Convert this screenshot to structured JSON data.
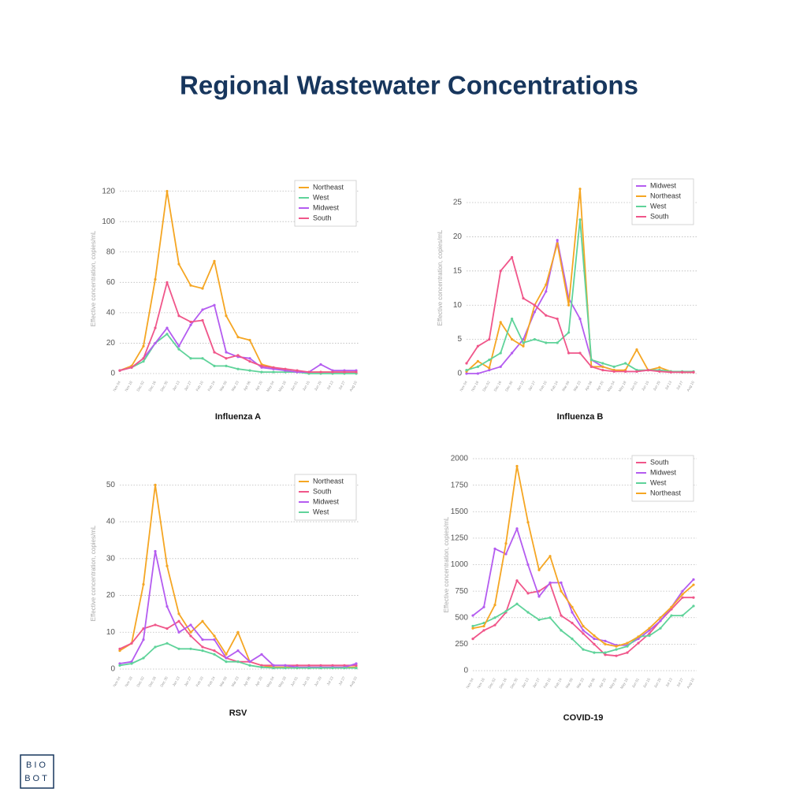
{
  "title": "Regional Wastewater Concentrations",
  "logo": {
    "line1": "BIO",
    "line2": "BOT"
  },
  "chart_data": [
    {
      "type": "line",
      "title": "Influenza A",
      "y_label": "Effective concentration, copies/mL",
      "categories": [
        "Nov 04",
        "Nov 18",
        "Dec 02",
        "Dec 16",
        "Dec 30",
        "Jan 13",
        "Jan 27",
        "Feb 10",
        "Feb 24",
        "Mar 09",
        "Mar 23",
        "Apr 06",
        "Apr 20",
        "May 04",
        "May 18",
        "Jun 01",
        "Jun 15",
        "Jun 29",
        "Jul 13",
        "Jul 27",
        "Aug 10"
      ],
      "ylim": [
        0,
        125
      ],
      "yticks": [
        0,
        20,
        40,
        60,
        80,
        100,
        120
      ],
      "grid": true,
      "legend": "upper right",
      "series": [
        {
          "name": "Northeast",
          "color": "#f5a623",
          "values": [
            2,
            5,
            18,
            62,
            120,
            72,
            58,
            56,
            74,
            38,
            24,
            22,
            6,
            4,
            2,
            1,
            1,
            1,
            1,
            1,
            1
          ]
        },
        {
          "name": "West",
          "color": "#5fd39a",
          "values": [
            2,
            4,
            8,
            20,
            26,
            16,
            10,
            10,
            5,
            5,
            3,
            2,
            1,
            1,
            1,
            1,
            0,
            0,
            0,
            0,
            0
          ]
        },
        {
          "name": "Midwest",
          "color": "#b45cf0",
          "values": [
            2,
            4,
            10,
            20,
            30,
            18,
            32,
            42,
            45,
            14,
            11,
            10,
            4,
            3,
            2,
            1,
            1,
            6,
            2,
            2,
            2
          ]
        },
        {
          "name": "South",
          "color": "#f0568a",
          "values": [
            2,
            4,
            10,
            30,
            60,
            38,
            34,
            35,
            14,
            10,
            12,
            8,
            5,
            4,
            3,
            2,
            1,
            1,
            1,
            1,
            1
          ]
        }
      ]
    },
    {
      "type": "line",
      "title": "Influenza B",
      "y_label": "Effective concentration, copies/mL",
      "categories": [
        "Nov 04",
        "Nov 18",
        "Dec 02",
        "Dec 16",
        "Dec 30",
        "Jan 13",
        "Jan 27",
        "Feb 10",
        "Feb 24",
        "Mar 09",
        "Mar 23",
        "Apr 06",
        "Apr 20",
        "May 04",
        "May 18",
        "Jun 01",
        "Jun 15",
        "Jun 29",
        "Jul 13",
        "Jul 27",
        "Aug 10"
      ],
      "ylim": [
        0,
        28
      ],
      "yticks": [
        0,
        5,
        10,
        15,
        20,
        25
      ],
      "grid": true,
      "legend": "upper right",
      "series": [
        {
          "name": "Midwest",
          "color": "#b45cf0",
          "values": [
            0,
            0,
            0.5,
            1,
            3,
            5,
            9,
            12,
            19.5,
            11,
            8,
            2,
            1,
            0.5,
            0.3,
            0.3,
            0.5,
            0.5,
            0.3,
            0.2,
            0.2
          ]
        },
        {
          "name": "Northeast",
          "color": "#f5a623",
          "values": [
            0.3,
            1.8,
            0.8,
            7.5,
            5,
            4,
            10,
            13,
            19,
            10,
            27,
            1,
            1,
            0.5,
            0.5,
            3.5,
            0.5,
            0.9,
            0.3,
            0.2,
            0.2
          ]
        },
        {
          "name": "West",
          "color": "#5fd39a",
          "values": [
            0.5,
            1,
            2,
            3,
            8,
            4.5,
            5,
            4.5,
            4.5,
            6,
            22.5,
            2,
            1.5,
            1,
            1.5,
            0.5,
            0.5,
            0.5,
            0.3,
            0.3,
            0.3
          ]
        },
        {
          "name": "South",
          "color": "#f0568a",
          "values": [
            1.5,
            4,
            5,
            15,
            17,
            11,
            10,
            8.5,
            8,
            3,
            3,
            1,
            0.5,
            0.3,
            0.3,
            0.3,
            0.5,
            0.3,
            0.2,
            0.2,
            0.2
          ]
        }
      ]
    },
    {
      "type": "line",
      "title": "RSV",
      "y_label": "Effective concentration, copies/mL",
      "categories": [
        "Nov 04",
        "Nov 18",
        "Dec 02",
        "Dec 16",
        "Dec 30",
        "Jan 13",
        "Jan 27",
        "Feb 10",
        "Feb 24",
        "Mar 09",
        "Mar 23",
        "Apr 06",
        "Apr 20",
        "May 04",
        "May 18",
        "Jun 01",
        "Jun 15",
        "Jun 29",
        "Jul 13",
        "Jul 27",
        "Aug 10"
      ],
      "ylim": [
        0,
        52
      ],
      "yticks": [
        0,
        10,
        20,
        30,
        40,
        50
      ],
      "grid": true,
      "legend": "upper right",
      "series": [
        {
          "name": "Northeast",
          "color": "#f5a623",
          "values": [
            5,
            7,
            23,
            50,
            28,
            15,
            10,
            13,
            9,
            4,
            10,
            2,
            1,
            0.5,
            0.5,
            0.5,
            0.5,
            0.5,
            0.5,
            0.5,
            0.5
          ]
        },
        {
          "name": "South",
          "color": "#f0568a",
          "values": [
            5.5,
            7,
            11,
            12,
            11,
            13,
            9,
            6,
            5,
            3,
            2,
            2,
            1,
            1,
            1,
            1,
            1,
            1,
            1,
            1,
            1
          ]
        },
        {
          "name": "Midwest",
          "color": "#b45cf0",
          "values": [
            1.5,
            2,
            8,
            32,
            17,
            10,
            12,
            8,
            8,
            3,
            5,
            2,
            4,
            1,
            1,
            0.5,
            0.5,
            0.5,
            0.5,
            0.5,
            1.5
          ]
        },
        {
          "name": "West",
          "color": "#5fd39a",
          "values": [
            1,
            1.5,
            3,
            6,
            7,
            5.5,
            5.5,
            5,
            4,
            2,
            2,
            1,
            0.5,
            0.3,
            0.3,
            0.3,
            0.3,
            0.3,
            0.3,
            0.3,
            0.3
          ]
        }
      ]
    },
    {
      "type": "line",
      "title": "COVID-19",
      "y_label": "Effective concentration, copies/mL",
      "categories": [
        "Nov 04",
        "Nov 18",
        "Dec 02",
        "Dec 16",
        "Dec 30",
        "Jan 13",
        "Jan 27",
        "Feb 10",
        "Feb 24",
        "Mar 09",
        "Mar 23",
        "Apr 06",
        "Apr 20",
        "May 04",
        "May 18",
        "Jun 01",
        "Jun 15",
        "Jun 29",
        "Jul 13",
        "Jul 27",
        "Aug 10"
      ],
      "ylim": [
        0,
        2000
      ],
      "yticks": [
        0,
        250,
        500,
        750,
        {
          "value": 1000,
          "label": "1000"
        },
        1250,
        1500,
        1750,
        2000
      ],
      "grid": true,
      "legend": "upper right",
      "series": [
        {
          "name": "South",
          "color": "#f0568a",
          "values": [
            300,
            380,
            430,
            550,
            850,
            730,
            750,
            820,
            520,
            450,
            350,
            250,
            150,
            140,
            170,
            260,
            350,
            470,
            580,
            690,
            690
          ]
        },
        {
          "name": "Midwest",
          "color": "#b45cf0",
          "values": [
            520,
            600,
            1150,
            1100,
            1340,
            1000,
            700,
            830,
            830,
            550,
            380,
            300,
            280,
            240,
            240,
            300,
            380,
            470,
            600,
            750,
            860
          ]
        },
        {
          "name": "West",
          "color": "#5fd39a",
          "values": [
            420,
            450,
            500,
            560,
            630,
            550,
            480,
            500,
            380,
            300,
            200,
            170,
            170,
            200,
            230,
            320,
            330,
            400,
            520,
            520,
            610
          ]
        },
        {
          "name": "Northeast",
          "color": "#f5a623",
          "values": [
            400,
            420,
            620,
            1200,
            1930,
            1400,
            950,
            1080,
            750,
            600,
            420,
            330,
            250,
            230,
            260,
            320,
            400,
            500,
            600,
            720,
            810
          ]
        }
      ]
    }
  ]
}
